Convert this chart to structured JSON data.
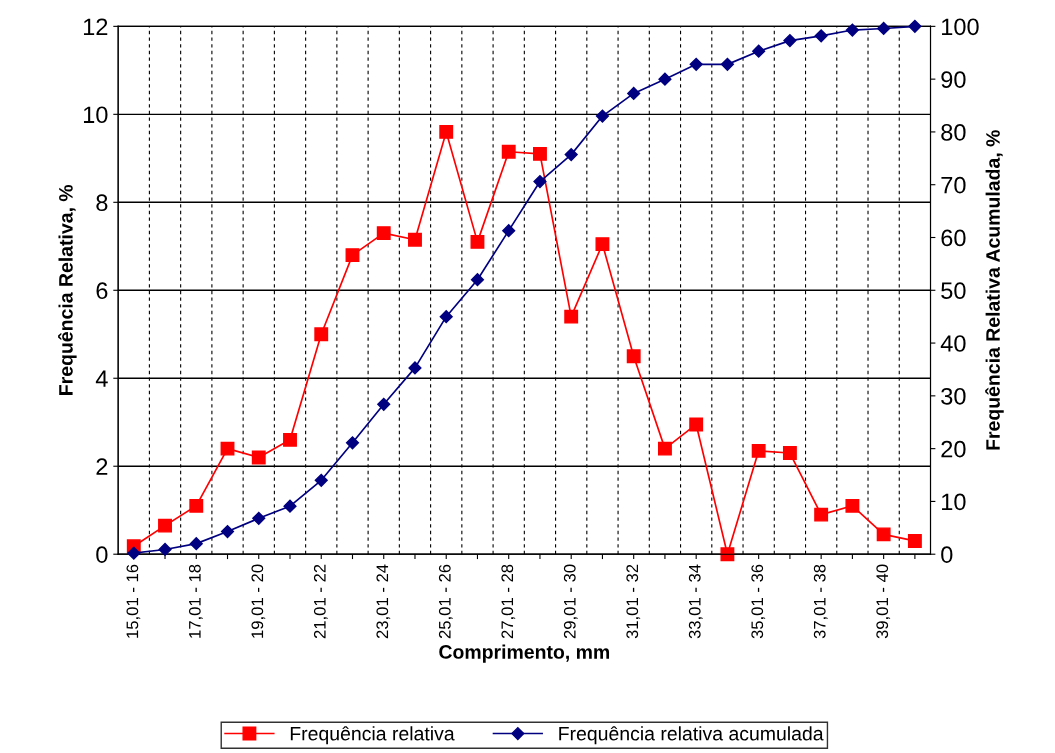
{
  "chart_data": {
    "type": "line",
    "xlabel": "Comprimento, mm",
    "ylabel": "Frequência Relativa, %",
    "y2label": "Frequência Relativa Acumulada, %",
    "categories": [
      "15,01 - 16",
      null,
      "17,01 - 18",
      null,
      "19,01 - 20",
      null,
      "21,01 - 22",
      null,
      "23,01 - 24",
      null,
      "25,01 - 26",
      null,
      "27,01 - 28",
      null,
      "29,01 - 30",
      null,
      "31,01 - 32",
      null,
      "33,01 - 34",
      null,
      "35,01 - 36",
      null,
      "37,01 - 38",
      null,
      "39,01 - 40",
      null
    ],
    "series": [
      {
        "name": "Frequência relativa",
        "color": "#ff0000",
        "marker": "square",
        "values": [
          0.18,
          0.65,
          1.1,
          2.4,
          2.2,
          2.6,
          5.0,
          6.8,
          7.3,
          7.15,
          9.6,
          7.1,
          9.15,
          9.1,
          5.4,
          7.05,
          4.5,
          2.4,
          2.95,
          0,
          2.35,
          2.3,
          0.9,
          1.1,
          0.45,
          0.3
        ]
      },
      {
        "name": "Frequência relativa acumulada",
        "color": "#000080",
        "marker": "diamond",
        "axis": "y2",
        "values": [
          0.2,
          0.9,
          2,
          4.3,
          6.8,
          9.1,
          14,
          21.1,
          28.4,
          35.3,
          45,
          52,
          61.3,
          70.6,
          75.7,
          83,
          87.3,
          90,
          92.8,
          92.8,
          95.3,
          97.3,
          98.2,
          99.3,
          99.6,
          100
        ]
      }
    ],
    "ylim": [
      0,
      12
    ],
    "yticks": [
      0,
      2,
      4,
      6,
      8,
      10,
      12
    ],
    "y2lim": [
      0,
      100
    ],
    "y2ticks": [
      0,
      10,
      20,
      30,
      40,
      50,
      60,
      70,
      80,
      90,
      100
    ],
    "grid": true,
    "legend": "bottom",
    "line_style": "solid"
  }
}
